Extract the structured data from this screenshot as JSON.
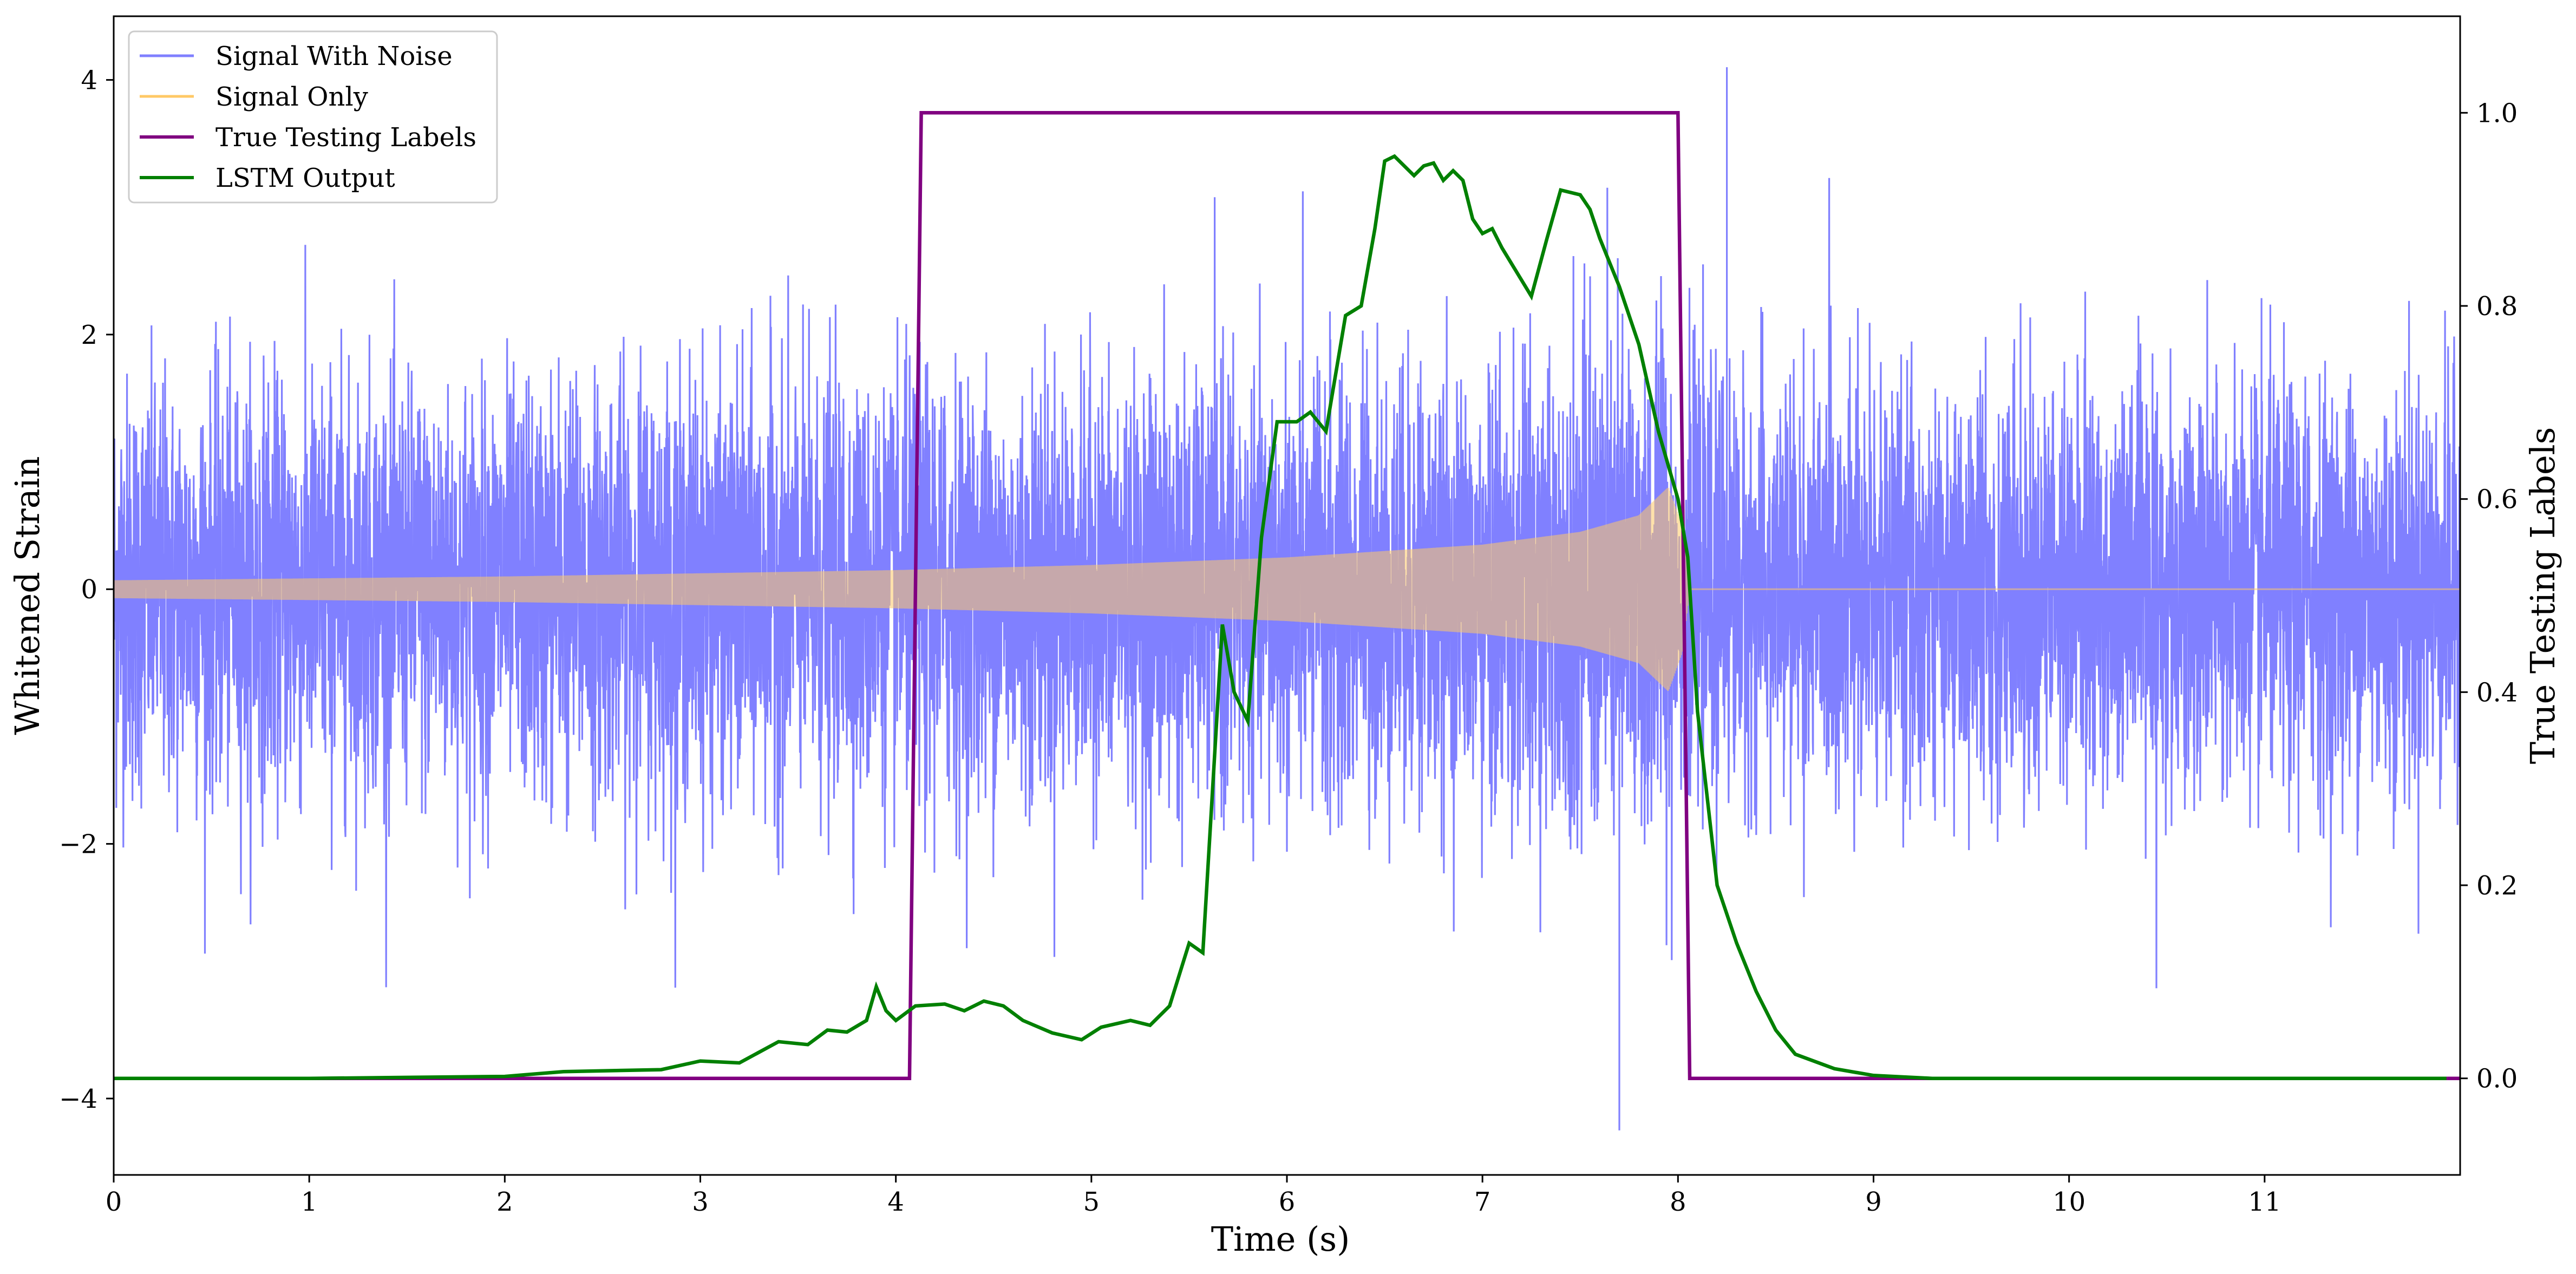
{
  "chart_data": {
    "type": "line",
    "xlabel": "Time (s)",
    "ylabel_left": "Whitened Strain",
    "ylabel_right": "True Testing Labels",
    "xlim": [
      0,
      12
    ],
    "ylim_left": [
      -4.6,
      4.5
    ],
    "ylim_right": [
      -0.1,
      1.1
    ],
    "x_ticks": [
      0,
      1,
      2,
      3,
      4,
      5,
      6,
      7,
      8,
      9,
      10,
      11
    ],
    "y_ticks_left": [
      -4,
      -2,
      0,
      2,
      4
    ],
    "y_ticks_left_labels": [
      "−4",
      "−2",
      "0",
      "2",
      "4"
    ],
    "y_ticks_right": [
      0.0,
      0.2,
      0.4,
      0.6,
      0.8,
      1.0
    ],
    "y_ticks_right_labels": [
      "0.0",
      "0.2",
      "0.4",
      "0.6",
      "0.8",
      "1.0"
    ],
    "grid": false,
    "legend_position": "top-left",
    "series": [
      {
        "name": "Signal With Noise",
        "axis": "left",
        "color": "#8080ff",
        "kind": "noisy-waveform",
        "approx_std": 0.8,
        "approx_extremes": {
          "max": 4.1,
          "max_at": 8.25,
          "min": -4.25,
          "min_at": 7.7
        }
      },
      {
        "name": "Signal Only",
        "axis": "left",
        "color": "#ffc966",
        "kind": "chirp",
        "envelope": {
          "t": [
            0,
            2,
            4,
            5,
            6,
            7,
            7.5,
            7.8,
            7.95,
            8.02,
            8.06,
            12
          ],
          "amplitude": [
            0.07,
            0.1,
            0.15,
            0.19,
            0.25,
            0.35,
            0.45,
            0.58,
            0.8,
            0.5,
            0.0,
            0.0
          ]
        }
      },
      {
        "name": "True Testing Labels",
        "axis": "right",
        "color": "#800080",
        "x": [
          0,
          4.07,
          4.13,
          8.0,
          8.06,
          12
        ],
        "y": [
          0,
          0,
          1,
          1,
          0,
          0
        ]
      },
      {
        "name": "LSTM Output",
        "axis": "right",
        "color": "#008000",
        "x": [
          0,
          1.0,
          2.0,
          2.3,
          2.8,
          3.0,
          3.2,
          3.4,
          3.55,
          3.65,
          3.75,
          3.85,
          3.9,
          3.95,
          4.0,
          4.1,
          4.25,
          4.35,
          4.45,
          4.55,
          4.65,
          4.8,
          4.95,
          5.05,
          5.2,
          5.3,
          5.4,
          5.5,
          5.57,
          5.62,
          5.67,
          5.73,
          5.8,
          5.87,
          5.95,
          6.05,
          6.12,
          6.2,
          6.3,
          6.38,
          6.45,
          6.5,
          6.55,
          6.6,
          6.65,
          6.7,
          6.75,
          6.8,
          6.85,
          6.9,
          6.95,
          7.0,
          7.05,
          7.1,
          7.25,
          7.33,
          7.4,
          7.5,
          7.55,
          7.6,
          7.7,
          7.8,
          7.9,
          8.0,
          8.05,
          8.1,
          8.2,
          8.3,
          8.4,
          8.5,
          8.6,
          8.8,
          9.0,
          9.3,
          12
        ],
        "y": [
          0.0,
          0.0,
          0.002,
          0.007,
          0.009,
          0.018,
          0.016,
          0.038,
          0.035,
          0.05,
          0.048,
          0.06,
          0.095,
          0.07,
          0.06,
          0.075,
          0.077,
          0.07,
          0.08,
          0.075,
          0.06,
          0.047,
          0.04,
          0.053,
          0.06,
          0.055,
          0.075,
          0.14,
          0.13,
          0.3,
          0.47,
          0.4,
          0.37,
          0.56,
          0.68,
          0.68,
          0.69,
          0.67,
          0.79,
          0.8,
          0.88,
          0.95,
          0.955,
          0.945,
          0.935,
          0.945,
          0.948,
          0.93,
          0.94,
          0.93,
          0.89,
          0.875,
          0.88,
          0.86,
          0.81,
          0.87,
          0.92,
          0.915,
          0.9,
          0.87,
          0.82,
          0.76,
          0.67,
          0.6,
          0.54,
          0.38,
          0.2,
          0.14,
          0.09,
          0.05,
          0.025,
          0.01,
          0.003,
          0.0,
          0.0
        ]
      }
    ]
  }
}
